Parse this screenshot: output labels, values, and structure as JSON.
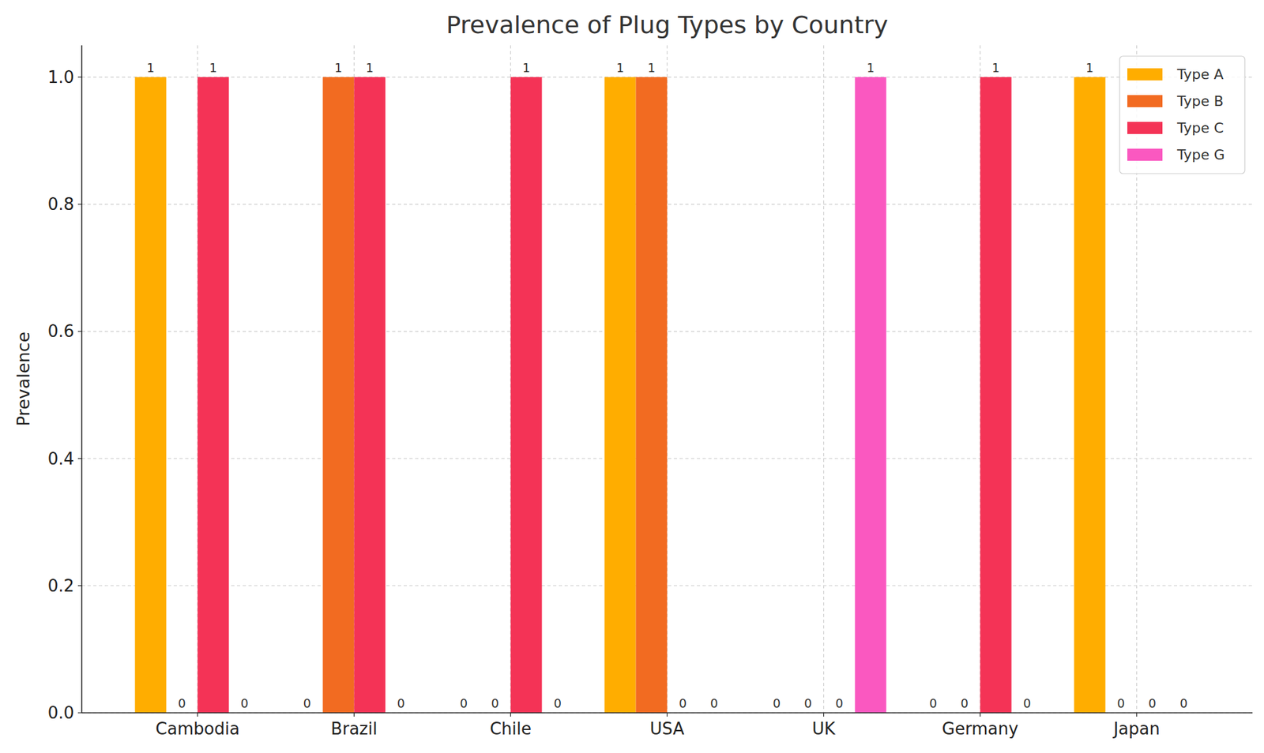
{
  "chart_data": {
    "type": "bar",
    "title": "Prevalence of Plug Types by Country",
    "y_label": "Prevalence",
    "categories": [
      "Cambodia",
      "Brazil",
      "Chile",
      "USA",
      "UK",
      "Germany",
      "Japan"
    ],
    "series": [
      {
        "name": "Type A",
        "color": "#ffad00",
        "values": [
          1,
          0,
          0,
          1,
          0,
          0,
          1
        ]
      },
      {
        "name": "Type B",
        "color": "#f26b21",
        "values": [
          0,
          1,
          0,
          1,
          0,
          0,
          0
        ]
      },
      {
        "name": "Type C",
        "color": "#f43356",
        "values": [
          1,
          1,
          1,
          0,
          0,
          1,
          0
        ]
      },
      {
        "name": "Type G",
        "color": "#fa58c0",
        "values": [
          0,
          0,
          0,
          0,
          1,
          0,
          0
        ]
      }
    ],
    "ylim": [
      0,
      1.05
    ],
    "yticks": [
      {
        "value": 0,
        "label": "0.0"
      },
      0.2,
      0.4,
      0.6,
      0.8,
      {
        "value": 1,
        "label": "1.0"
      }
    ],
    "grid": true,
    "legend": "upper right",
    "data_labels": true
  }
}
